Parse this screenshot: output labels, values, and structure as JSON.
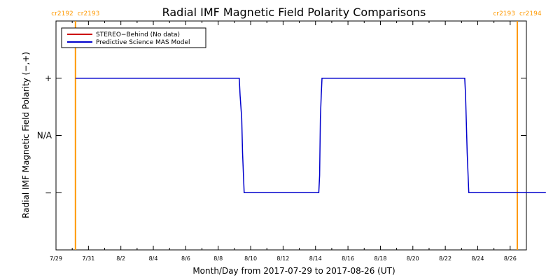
{
  "chart_data": {
    "type": "line",
    "title": "Radial IMF Magnetic Field Polarity Comparisons",
    "xlabel": "Month/Day from 2017-07-29 to 2017-08-26 (UT)",
    "ylabel": "Radial IMF Magnetic Field Polarity (−,+)",
    "x_range_days": [
      0,
      29
    ],
    "y_range": [
      -2,
      2
    ],
    "x_tick_labels": [
      "7/29",
      "7/31",
      "8/2",
      "8/4",
      "8/6",
      "8/8",
      "8/10",
      "8/12",
      "8/14",
      "8/16",
      "8/18",
      "8/20",
      "8/22",
      "8/24",
      "8/26"
    ],
    "y_tick_labels": [
      {
        "value": 1,
        "label": "+"
      },
      {
        "value": 0,
        "label": "N/A"
      },
      {
        "value": -1,
        "label": "−"
      }
    ],
    "grid": false,
    "legend_position": "top-left",
    "carrington_markers": [
      {
        "day": 1.2,
        "left": "cr2192",
        "right": "cr2193"
      },
      {
        "day": 30.2,
        "left": "cr2193",
        "right": "cr2194"
      }
    ],
    "series": [
      {
        "name": "STEREO−Behind (No data)",
        "color": "#cc0000",
        "values": []
      },
      {
        "name": "Predictive Science MAS Model",
        "color": "#0000cc",
        "points": [
          [
            1.2,
            1
          ],
          [
            11.3,
            1
          ],
          [
            11.35,
            0.7
          ],
          [
            11.45,
            0.3
          ],
          [
            11.5,
            -0.3
          ],
          [
            11.6,
            -1
          ],
          [
            16.2,
            -1
          ],
          [
            16.25,
            -0.7
          ],
          [
            16.3,
            0.3
          ],
          [
            16.35,
            0.7
          ],
          [
            16.4,
            1
          ],
          [
            25.2,
            1
          ],
          [
            25.25,
            0.7
          ],
          [
            25.35,
            -0.3
          ],
          [
            25.45,
            -1
          ],
          [
            30.2,
            -1
          ]
        ]
      }
    ],
    "marker_color": "#ff9900"
  }
}
